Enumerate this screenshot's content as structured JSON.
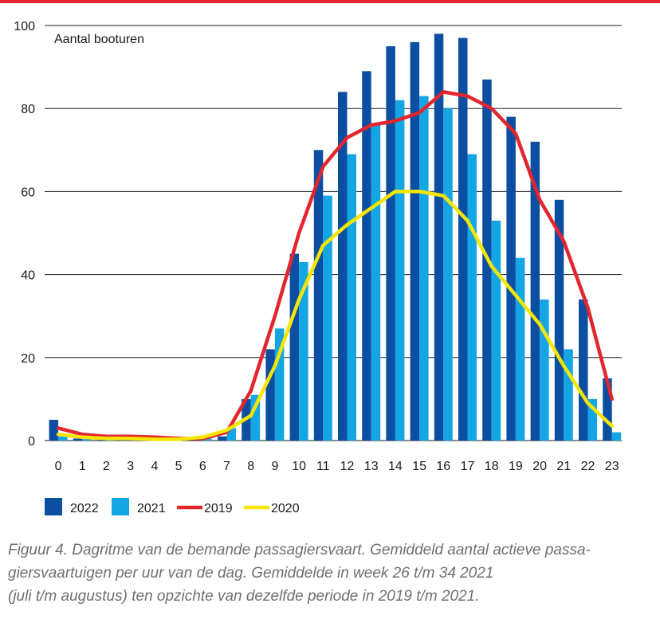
{
  "colors": {
    "top_rule": "#e3262e",
    "series_2022": "#0b4ea2",
    "series_2021": "#14a6e4",
    "series_2019": "#e3262e",
    "series_2020": "#f6e600",
    "gridline": "#1a1a1a",
    "caption": "#6f6f6f"
  },
  "caption": {
    "line1": "Figuur 4. Dagritme van de bemande passagiersvaart. Gemiddeld aantal actieve passa-",
    "line2": "giersvaartuigen per uur van de dag. Gemiddelde in week 26 t/m 34 2021",
    "line3": "(juli t/m augustus) ten opzichte van dezelfde periode in 2019 t/m 2021."
  },
  "chart_data": {
    "type": "bar",
    "title": "",
    "xlabel": "",
    "ylabel": "Aantal booturen",
    "ylim": [
      0,
      100
    ],
    "yticks": [
      0,
      20,
      40,
      60,
      80,
      100
    ],
    "grid": true,
    "legend_position": "bottom-left",
    "categories": [
      "0",
      "1",
      "2",
      "3",
      "4",
      "5",
      "6",
      "7",
      "8",
      "9",
      "10",
      "11",
      "12",
      "13",
      "14",
      "15",
      "16",
      "17",
      "18",
      "19",
      "20",
      "21",
      "22",
      "23"
    ],
    "series": [
      {
        "name": "2022",
        "type": "bar",
        "values": [
          5,
          0.5,
          0.3,
          0.3,
          0.3,
          0.3,
          0.5,
          1,
          10,
          22,
          45,
          70,
          84,
          89,
          95,
          96,
          98,
          97,
          87,
          78,
          72,
          58,
          34,
          15
        ]
      },
      {
        "name": "2021",
        "type": "bar",
        "values": [
          1,
          0.5,
          0.3,
          0.3,
          0.3,
          0.3,
          0.5,
          3,
          11,
          27,
          43,
          59,
          69,
          76,
          82,
          83,
          80,
          69,
          53,
          44,
          34,
          22,
          10,
          2
        ]
      },
      {
        "name": "2019",
        "type": "line",
        "values": [
          3,
          1.5,
          1,
          1,
          0.8,
          0.5,
          0.5,
          2,
          12,
          30,
          50,
          66,
          73,
          76,
          77,
          79,
          84,
          83,
          80,
          74,
          58,
          48,
          32,
          10
        ]
      },
      {
        "name": "2020",
        "type": "line",
        "values": [
          1.5,
          0.8,
          0.5,
          0.5,
          0.3,
          0.3,
          0.8,
          2.5,
          6,
          18,
          34,
          47,
          52,
          56,
          60,
          60,
          59,
          53,
          42,
          35,
          28,
          18,
          9,
          3.5
        ]
      }
    ]
  }
}
